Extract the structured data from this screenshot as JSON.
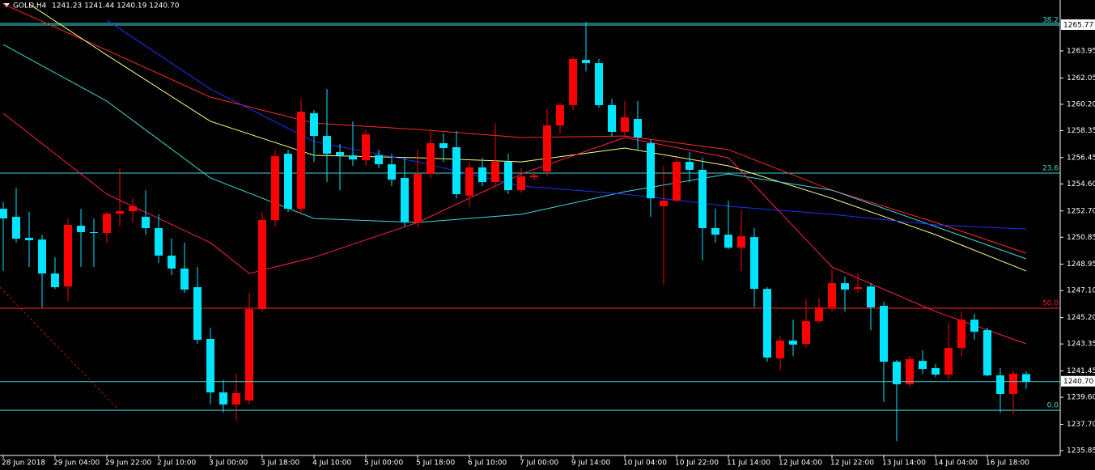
{
  "chart_data": {
    "type": "candlestick",
    "title": "GOLD,H4",
    "quote": "1241.23 1241.44 1240.19 1240.70",
    "categories": [
      "28 Jun 2018",
      null,
      null,
      null,
      "29 Jun 04:00",
      null,
      null,
      null,
      "29 Jun 22:00",
      null,
      null,
      null,
      "2 Jul 10:00",
      null,
      null,
      null,
      "3 Jul 00:00",
      null,
      null,
      null,
      "3 Jul 18:00",
      null,
      null,
      null,
      "4 Jul 10:00",
      null,
      null,
      null,
      "5 Jul 00:00",
      null,
      null,
      null,
      "5 Jul 18:00",
      null,
      null,
      null,
      "6 Jul 10:00",
      null,
      null,
      null,
      "7 Jul 00:00",
      null,
      null,
      null,
      "9 Jul 14:00",
      null,
      null,
      null,
      "10 Jul 04:00",
      null,
      null,
      null,
      "10 Jul 22:00",
      null,
      null,
      null,
      "11 Jul 14:00",
      null,
      null,
      null,
      "12 Jul 04:00",
      null,
      null,
      null,
      "12 Jul 22:00",
      null,
      null,
      null,
      "13 Jul 14:00",
      null,
      null,
      null,
      "14 Jul 04:00",
      null,
      null,
      null,
      "16 Jul 18:00",
      null,
      null,
      null
    ],
    "open": [
      1252.85,
      1252.29,
      1250.81,
      1250.69,
      1248.3,
      1247.39,
      1251.66,
      1251.21,
      1251.15,
      1252.51,
      1252.68,
      1252.29,
      1251.49,
      1249.56,
      1248.65,
      1247.34,
      1243.7,
      1239.94,
      1239.09,
      1239.37,
      1245.8,
      1252.06,
      1256.72,
      1252.85,
      1259.57,
      1257.97,
      1256.84,
      1256.61,
      1256.27,
      1256.61,
      1255.98,
      1255.02,
      1251.89,
      1255.3,
      1257.46,
      1257.18,
      1253.77,
      1255.76,
      1254.73,
      1256.15,
      1254.16,
      1255.07,
      1255.47,
      1258.71,
      1260.14,
      1263.32,
      1263.09,
      1260.14,
      1258.26,
      1259.17,
      1257.46,
      1253.03,
      1253.42,
      1256.15,
      1255.59,
      1251.49,
      1251.03,
      1250.12,
      1250.86,
      1247.22,
      1242.33,
      1243.58,
      1243.36,
      1244.95,
      1245.92,
      1247.62,
      1247.22,
      1247.39,
      1246.03,
      1242.1,
      1240.51,
      1242.16,
      1241.65,
      1241.19,
      1243.07,
      1245.06,
      1244.32,
      1241.14,
      1239.83,
      1241.23
    ],
    "high": [
      1253.31,
      1254.33,
      1252.63,
      1251.03,
      1249.44,
      1252.17,
      1252.85,
      1252.17,
      1252.63,
      1255.76,
      1253.59,
      1254.16,
      1252.46,
      1250.75,
      1250.47,
      1248.76,
      1244.49,
      1240.8,
      1241.25,
      1246.94,
      1252.63,
      1257.01,
      1257.01,
      1260.59,
      1259.79,
      1261.27,
      1257.41,
      1259.0,
      1258.43,
      1257.01,
      1256.72,
      1256.44,
      1257.01,
      1258.43,
      1258.14,
      1258.32,
      1256.15,
      1256.44,
      1258.88,
      1256.72,
      1255.7,
      1255.47,
      1259.85,
      1260.25,
      1263.55,
      1265.99,
      1263.38,
      1260.59,
      1260.42,
      1260.42,
      1257.75,
      1255.87,
      1256.44,
      1256.84,
      1256.44,
      1252.85,
      1253.42,
      1252.74,
      1251.49,
      1247.34,
      1243.92,
      1245.06,
      1246.48,
      1246.6,
      1248.59,
      1248.08,
      1248.3,
      1247.62,
      1246.31,
      1242.22,
      1242.5,
      1242.9,
      1241.93,
      1244.78,
      1245.63,
      1245.46,
      1244.49,
      1241.65,
      1241.48,
      1241.44
    ],
    "low": [
      1248.48,
      1250.47,
      1248.76,
      1245.92,
      1247.22,
      1246.37,
      1248.76,
      1248.76,
      1250.47,
      1251.6,
      1251.89,
      1251.03,
      1249.04,
      1248.19,
      1246.94,
      1243.36,
      1239.09,
      1238.52,
      1237.95,
      1239.09,
      1245.63,
      1251.6,
      1252.63,
      1252.46,
      1256.15,
      1254.73,
      1254.16,
      1255.87,
      1255.87,
      1255.7,
      1254.45,
      1251.6,
      1251.6,
      1255.02,
      1256.15,
      1253.59,
      1253.03,
      1254.45,
      1254.45,
      1253.88,
      1253.99,
      1254.9,
      1255.13,
      1258.14,
      1259.79,
      1262.52,
      1259.96,
      1257.97,
      1257.97,
      1257.01,
      1252.29,
      1247.51,
      1253.31,
      1254.73,
      1249.21,
      1250.47,
      1250.01,
      1248.48,
      1245.92,
      1242.1,
      1241.48,
      1242.5,
      1243.07,
      1244.78,
      1245.63,
      1245.63,
      1246.94,
      1244.32,
      1239.26,
      1236.53,
      1240.34,
      1241.25,
      1241.02,
      1240.8,
      1242.5,
      1243.64,
      1241.08,
      1238.52,
      1238.41,
      1240.19
    ],
    "close": [
      1252.17,
      1250.75,
      1250.64,
      1248.3,
      1247.34,
      1251.72,
      1251.21,
      1251.15,
      1252.51,
      1252.68,
      1253.03,
      1251.49,
      1249.56,
      1248.65,
      1247.17,
      1243.64,
      1239.94,
      1239.09,
      1239.89,
      1245.8,
      1252.06,
      1256.55,
      1252.85,
      1259.68,
      1257.97,
      1256.72,
      1256.61,
      1256.32,
      1258.09,
      1255.98,
      1254.9,
      1251.89,
      1255.3,
      1257.46,
      1257.12,
      1253.88,
      1255.76,
      1254.73,
      1256.15,
      1254.16,
      1255.13,
      1255.19,
      1258.71,
      1260.14,
      1263.38,
      1263.09,
      1260.14,
      1258.26,
      1259.28,
      1257.86,
      1253.59,
      1253.42,
      1256.15,
      1255.59,
      1251.49,
      1251.03,
      1250.12,
      1250.92,
      1247.22,
      1242.39,
      1243.58,
      1243.3,
      1244.95,
      1245.92,
      1247.62,
      1247.17,
      1247.34,
      1245.92,
      1242.1,
      1240.51,
      1242.28,
      1241.59,
      1241.19,
      1243.07,
      1245.06,
      1244.21,
      1241.14,
      1239.83,
      1241.25,
      1240.7
    ],
    "up_color": "#ff0000",
    "down_color": "#00e5ff",
    "ylim": [
      1235.51,
      1267.53
    ],
    "yticks": [
      1263.95,
      1262.05,
      {
        "value": 1260.2,
        "label": "1260.20"
      },
      1258.35,
      1256.45,
      {
        "value": 1254.6,
        "label": "1254.60"
      },
      {
        "value": 1252.7,
        "label": "1252.70"
      },
      1250.85,
      1248.95,
      {
        "value": 1247.1,
        "label": "1247.10"
      },
      {
        "value": 1245.2,
        "label": "1245.20"
      },
      1243.35,
      1241.45,
      {
        "value": 1239.6,
        "label": "1239.60"
      },
      {
        "value": 1237.7,
        "label": "1237.70"
      },
      1235.85
    ],
    "grid": false,
    "overlays": [
      {
        "color": "#ff2a2a",
        "x": [
          0,
          8,
          16,
          24,
          32,
          40,
          48,
          56,
          64,
          72,
          79
        ],
        "values": [
          1267.25,
          1264.0,
          1260.7,
          1258.88,
          1258.43,
          1257.86,
          1257.97,
          1257.01,
          1254.16,
          1251.89,
          1249.73
        ]
      },
      {
        "color": "#ffff80",
        "x": [
          2,
          8,
          16,
          24,
          32,
          40,
          48,
          56,
          64,
          72,
          79
        ],
        "values": [
          1267.25,
          1263.66,
          1259.0,
          1256.61,
          1256.44,
          1256.15,
          1257.12,
          1255.87,
          1253.59,
          1251.03,
          1248.48
        ]
      },
      {
        "color": "#40d8d8",
        "x": [
          0,
          8,
          16,
          24,
          32,
          40,
          48,
          56,
          64,
          72,
          79
        ],
        "values": [
          1264.4,
          1260.42,
          1255.02,
          1252.17,
          1251.89,
          1252.46,
          1254.05,
          1255.3,
          1254.16,
          1251.6,
          1249.33
        ]
      },
      {
        "color": "#2030ff",
        "x": [
          8,
          16,
          24,
          32,
          40,
          48,
          56,
          64,
          72,
          79
        ],
        "values": [
          1266.11,
          1261.27,
          1257.58,
          1256.15,
          1254.45,
          1253.88,
          1253.03,
          1252.46,
          1251.72,
          1251.43
        ]
      },
      {
        "color": "#ff2050",
        "x": [
          0,
          8,
          16,
          19,
          24,
          32,
          40,
          48,
          56,
          64,
          72,
          79
        ],
        "values": [
          1259.57,
          1253.88,
          1250.47,
          1248.3,
          1249.44,
          1251.89,
          1255.3,
          1257.86,
          1256.44,
          1248.76,
          1245.63,
          1243.36
        ]
      }
    ],
    "levels": [
      {
        "value": 1265.77,
        "label": "38.2",
        "color": "#40d8d8",
        "price_label": "1265.77"
      },
      {
        "value": 1255.36,
        "label": "23.6",
        "color": "#40d8d8"
      },
      {
        "value": 1245.86,
        "label": "50.0",
        "color": "#ff2020"
      },
      {
        "value": 1238.69,
        "label": "0.0",
        "color": "#40d8d8"
      }
    ],
    "bid": {
      "value": 1240.7,
      "label": "1240.70",
      "color": "#40d8d8"
    }
  }
}
